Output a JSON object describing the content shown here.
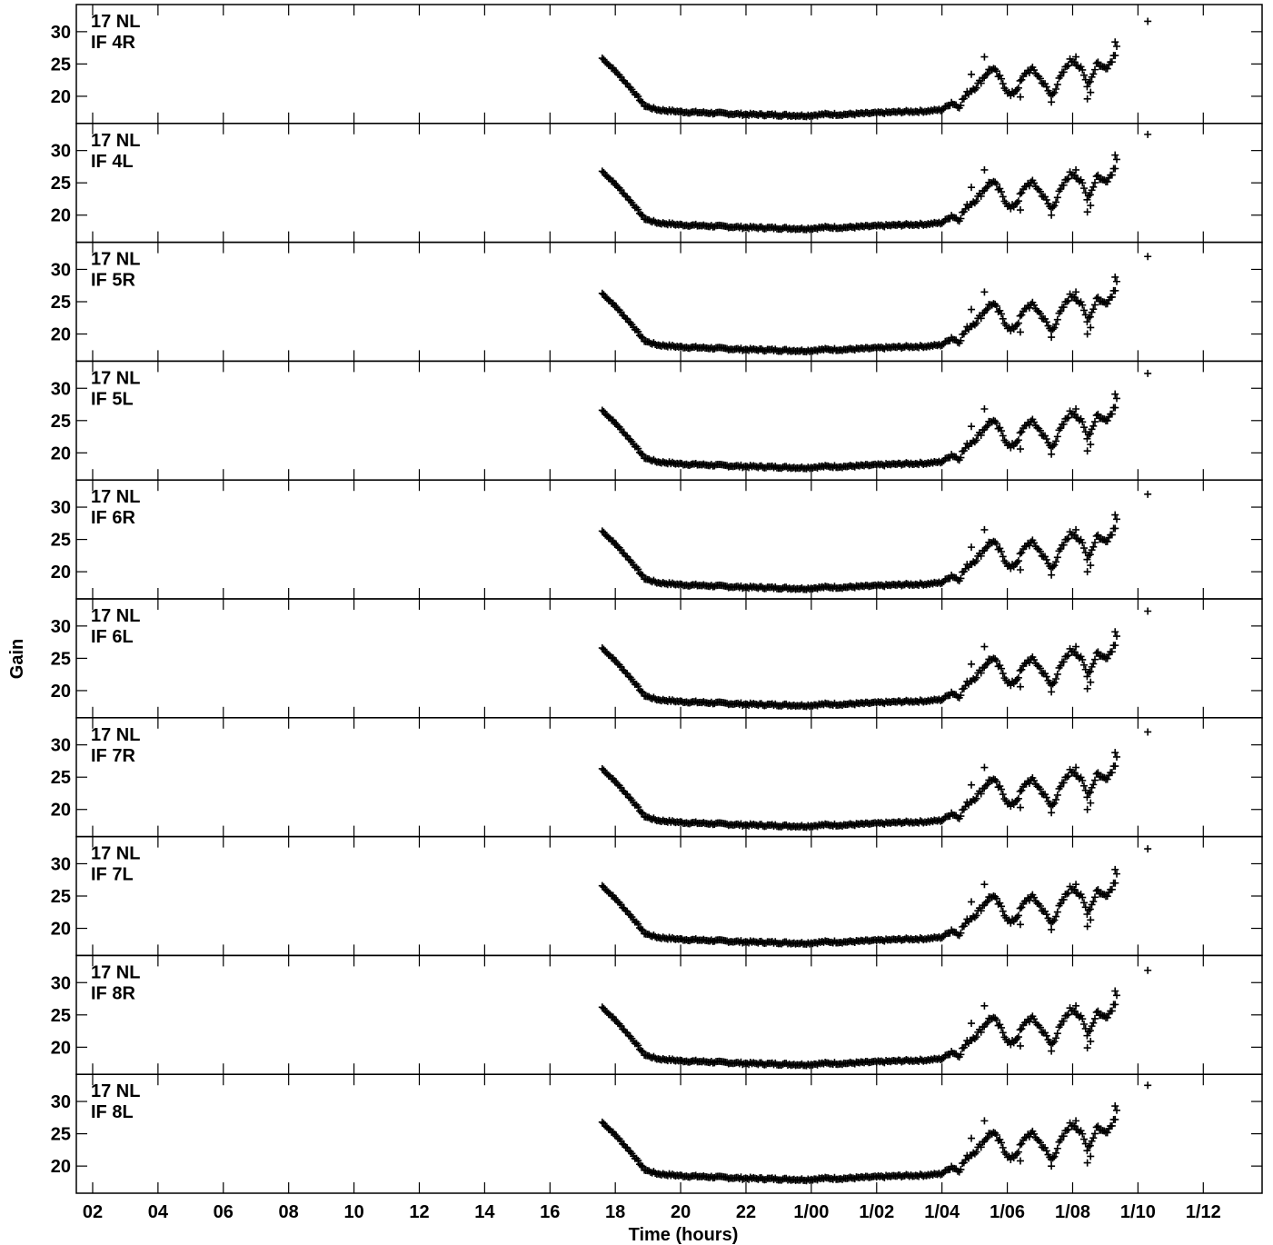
{
  "chart_data": {
    "type": "scatter",
    "marker": "plus",
    "ylabel": "Gain",
    "xlabel": "Time (hours)",
    "x_unit": "hours",
    "xlim": [
      1.5,
      37.8
    ],
    "x_ticks": [
      {
        "value": 2,
        "label": "02"
      },
      {
        "value": 4,
        "label": "04"
      },
      {
        "value": 6,
        "label": "06"
      },
      {
        "value": 8,
        "label": "08"
      },
      {
        "value": 10,
        "label": "10"
      },
      {
        "value": 12,
        "label": "12"
      },
      {
        "value": 14,
        "label": "14"
      },
      {
        "value": 16,
        "label": "16"
      },
      {
        "value": 18,
        "label": "18"
      },
      {
        "value": 20,
        "label": "20"
      },
      {
        "value": 22,
        "label": "22"
      },
      {
        "value": 24,
        "label": "1/00"
      },
      {
        "value": 26,
        "label": "1/02"
      },
      {
        "value": 28,
        "label": "1/04"
      },
      {
        "value": 30,
        "label": "1/06"
      },
      {
        "value": 32,
        "label": "1/08"
      },
      {
        "value": 34,
        "label": "1/10"
      },
      {
        "value": 36,
        "label": "1/12"
      }
    ],
    "ylim": [
      15.8,
      34.2
    ],
    "y_ticks": [
      20,
      25,
      30
    ],
    "panels": [
      {
        "antenna": "17 NL",
        "if_label": "IF 4R",
        "offset": -0.4
      },
      {
        "antenna": "17 NL",
        "if_label": "IF 4L",
        "offset": 0.5
      },
      {
        "antenna": "17 NL",
        "if_label": "IF 5R",
        "offset": 0.0
      },
      {
        "antenna": "17 NL",
        "if_label": "IF 5L",
        "offset": 0.3
      },
      {
        "antenna": "17 NL",
        "if_label": "IF 6R",
        "offset": 0.0
      },
      {
        "antenna": "17 NL",
        "if_label": "IF 6L",
        "offset": 0.3
      },
      {
        "antenna": "17 NL",
        "if_label": "IF 7R",
        "offset": 0.0
      },
      {
        "antenna": "17 NL",
        "if_label": "IF 7L",
        "offset": 0.3
      },
      {
        "antenna": "17 NL",
        "if_label": "IF 8R",
        "offset": -0.1
      },
      {
        "antenna": "17 NL",
        "if_label": "IF 8L",
        "offset": 0.5
      }
    ],
    "base_curve": [
      [
        17.6,
        26.3
      ],
      [
        18.0,
        24.3
      ],
      [
        18.5,
        21.5
      ],
      [
        18.9,
        18.9
      ],
      [
        19.3,
        18.3
      ],
      [
        20.0,
        18.0
      ],
      [
        21.0,
        17.8
      ],
      [
        22.0,
        17.6
      ],
      [
        23.0,
        17.5
      ],
      [
        23.8,
        17.4
      ],
      [
        24.4,
        17.6
      ],
      [
        25.0,
        17.6
      ],
      [
        26.0,
        17.8
      ],
      [
        26.8,
        18.0
      ],
      [
        27.5,
        18.1
      ],
      [
        28.0,
        18.3
      ],
      [
        28.3,
        19.5
      ],
      [
        28.5,
        18.8
      ],
      [
        28.8,
        21.0
      ],
      [
        29.1,
        22.2
      ],
      [
        29.4,
        24.2
      ],
      [
        29.55,
        24.8
      ],
      [
        29.8,
        23.0
      ],
      [
        30.1,
        20.4
      ],
      [
        30.3,
        21.6
      ],
      [
        30.6,
        24.3
      ],
      [
        30.8,
        24.5
      ],
      [
        31.1,
        22.5
      ],
      [
        31.35,
        20.4
      ],
      [
        31.6,
        23.0
      ],
      [
        31.9,
        25.8
      ],
      [
        32.05,
        26.0
      ],
      [
        32.3,
        24.2
      ],
      [
        32.45,
        22.2
      ],
      [
        32.6,
        23.5
      ],
      [
        32.75,
        25.8
      ],
      [
        32.9,
        24.8
      ],
      [
        33.1,
        25.2
      ],
      [
        33.3,
        27.0
      ],
      [
        33.35,
        28.5
      ]
    ],
    "outliers": [
      [
        28.9,
        23.8
      ],
      [
        29.3,
        26.5
      ],
      [
        30.4,
        20.3
      ],
      [
        31.35,
        19.5
      ],
      [
        32.1,
        26.5
      ],
      [
        32.45,
        20.0
      ],
      [
        32.55,
        21.0
      ],
      [
        33.3,
        28.8
      ],
      [
        34.3,
        32.0
      ]
    ]
  }
}
